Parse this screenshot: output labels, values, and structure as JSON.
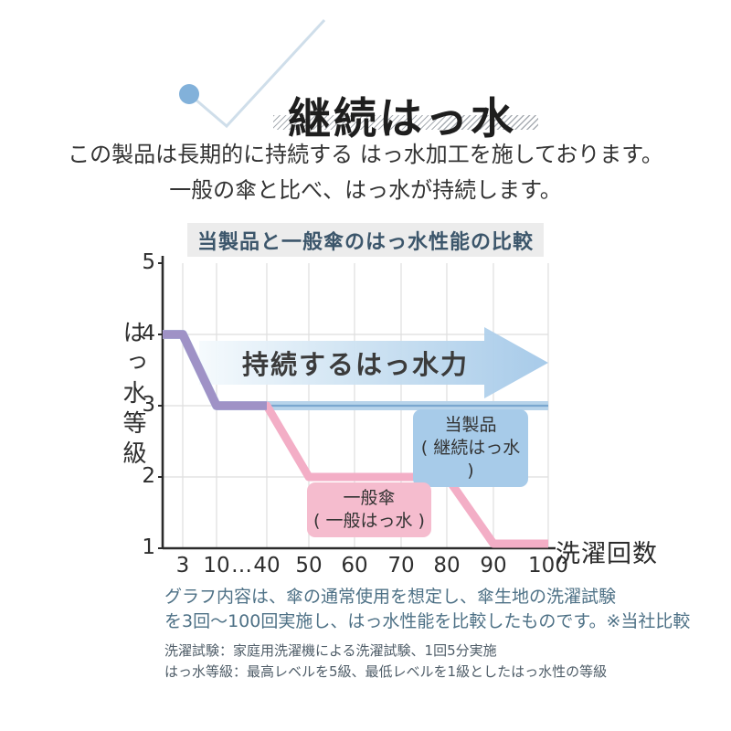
{
  "header": {
    "title": "継続はっ水"
  },
  "intro": {
    "line1": "この製品は長期的に持続する はっ水加工を施しております。",
    "line2": "一般の傘と比べ、はっ水が持続します。"
  },
  "chart": {
    "title": "当製品と一般傘のはっ水性能の比較",
    "y_axis_title": "はっ水等級",
    "x_axis_title": "洗濯回数",
    "arrow_label": "持続するはっ水力",
    "legend": {
      "product": {
        "line1": "当製品",
        "line2": "( 継続はっ水 )"
      },
      "general": {
        "line1": "一般傘",
        "line2": "( 一般はっ水 )"
      }
    }
  },
  "chart_data": {
    "type": "line",
    "title": "当製品と一般傘のはっ水性能の比較",
    "xlabel": "洗濯回数",
    "ylabel": "はっ水等級",
    "ylim": [
      1,
      5
    ],
    "y_ticks": [
      1,
      2,
      3,
      4,
      5
    ],
    "x_tick_values": [
      3,
      10,
      40,
      50,
      60,
      70,
      80,
      90,
      100
    ],
    "x_tick_display": [
      "3",
      "10",
      "…",
      "40",
      "50",
      "60",
      "70",
      "80",
      "90",
      "100"
    ],
    "grid": true,
    "series": [
      {
        "name": "当製品（継続はっ水）",
        "color": "#b7d3ea",
        "core_color": "#7aa7cf",
        "points": [
          [
            0,
            4
          ],
          [
            3,
            4
          ],
          [
            10,
            3
          ],
          [
            100,
            3
          ]
        ]
      },
      {
        "name": "一般傘（一般はっ水）",
        "color": "#f3aec6",
        "points": [
          [
            0,
            4
          ],
          [
            3,
            4
          ],
          [
            10,
            3
          ],
          [
            40,
            3
          ],
          [
            50,
            2
          ],
          [
            80,
            2
          ],
          [
            90,
            1
          ],
          [
            100,
            1
          ]
        ]
      }
    ],
    "overlap_segment": {
      "note": "両系列が重なる区間（紫色に見える）",
      "color": "#9f92c6",
      "points": [
        [
          0,
          4
        ],
        [
          3,
          4
        ],
        [
          10,
          3
        ],
        [
          40,
          3
        ]
      ]
    },
    "annotation_arrow": {
      "label": "持続するはっ水力",
      "direction": "right",
      "x_span": [
        13,
        100
      ],
      "y_span": [
        3.1,
        4.1
      ]
    },
    "legend_position": "inside-plot"
  },
  "notes": {
    "para_line1": "グラフ内容は、傘の通常使用を想定し、傘生地の洗濯試験",
    "para_line2": "を3回〜100回実施し、はっ水性能を比較したものです。※当社比較",
    "fine_line1": "洗濯試験：家庭用洗濯機による洗濯試験、1回5分実施",
    "fine_line2": "はっ水等級：最高レベルを5級、最低レベルを1級としたはっ水性の等級"
  },
  "colors": {
    "product_line_band": "#b7d3ea",
    "product_line_core": "#7aa7cf",
    "general_line": "#f3aec6",
    "overlap_line": "#9f92c6",
    "product_badge_bg": "#a7cbe9",
    "general_badge_bg": "#f5bcce",
    "arrow_gradient_start": "#f5fafd",
    "arrow_gradient_end": "#a3c8e8",
    "chart_title_bg": "#ececec",
    "chart_title_text": "#3c566b",
    "note_text": "#4e7186",
    "deco_dot": "#82b1da",
    "deco_line": "#cfdeea",
    "grid_line": "#dedede",
    "axis_line": "#2b2b2b"
  }
}
